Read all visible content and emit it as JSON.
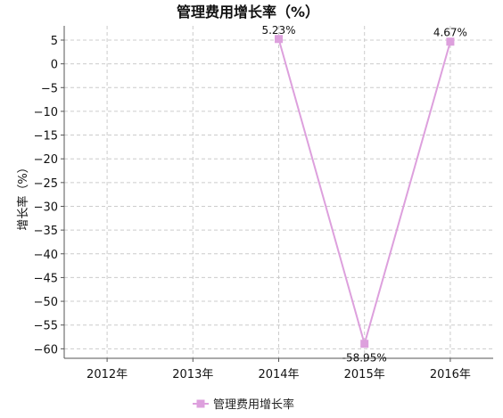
{
  "chart_data": {
    "type": "line",
    "title": "管理费用增长率（%）",
    "ylabel": "增长率（%）",
    "xlabel": "",
    "categories": [
      "2012年",
      "2013年",
      "2014年",
      "2015年",
      "2016年"
    ],
    "series": [
      {
        "name": "管理费用增长率",
        "color": "#dda0dd",
        "marker": "square",
        "values": [
          null,
          null,
          5.23,
          -58.95,
          4.67
        ],
        "labels": [
          "",
          "",
          "5.23%",
          "-58.95%",
          "4.67%"
        ]
      }
    ],
    "ylim": [
      -62,
      8
    ],
    "yticks": [
      5,
      0,
      -5,
      -10,
      -15,
      -20,
      -25,
      -30,
      -35,
      -40,
      -45,
      -50,
      -55,
      -60
    ],
    "ytick_labels": [
      "5",
      "0",
      "−5",
      "−10",
      "−15",
      "−20",
      "−25",
      "−30",
      "−35",
      "−40",
      "−45",
      "−50",
      "−55",
      "−60"
    ],
    "grid": true,
    "legend": "bottom-center"
  }
}
